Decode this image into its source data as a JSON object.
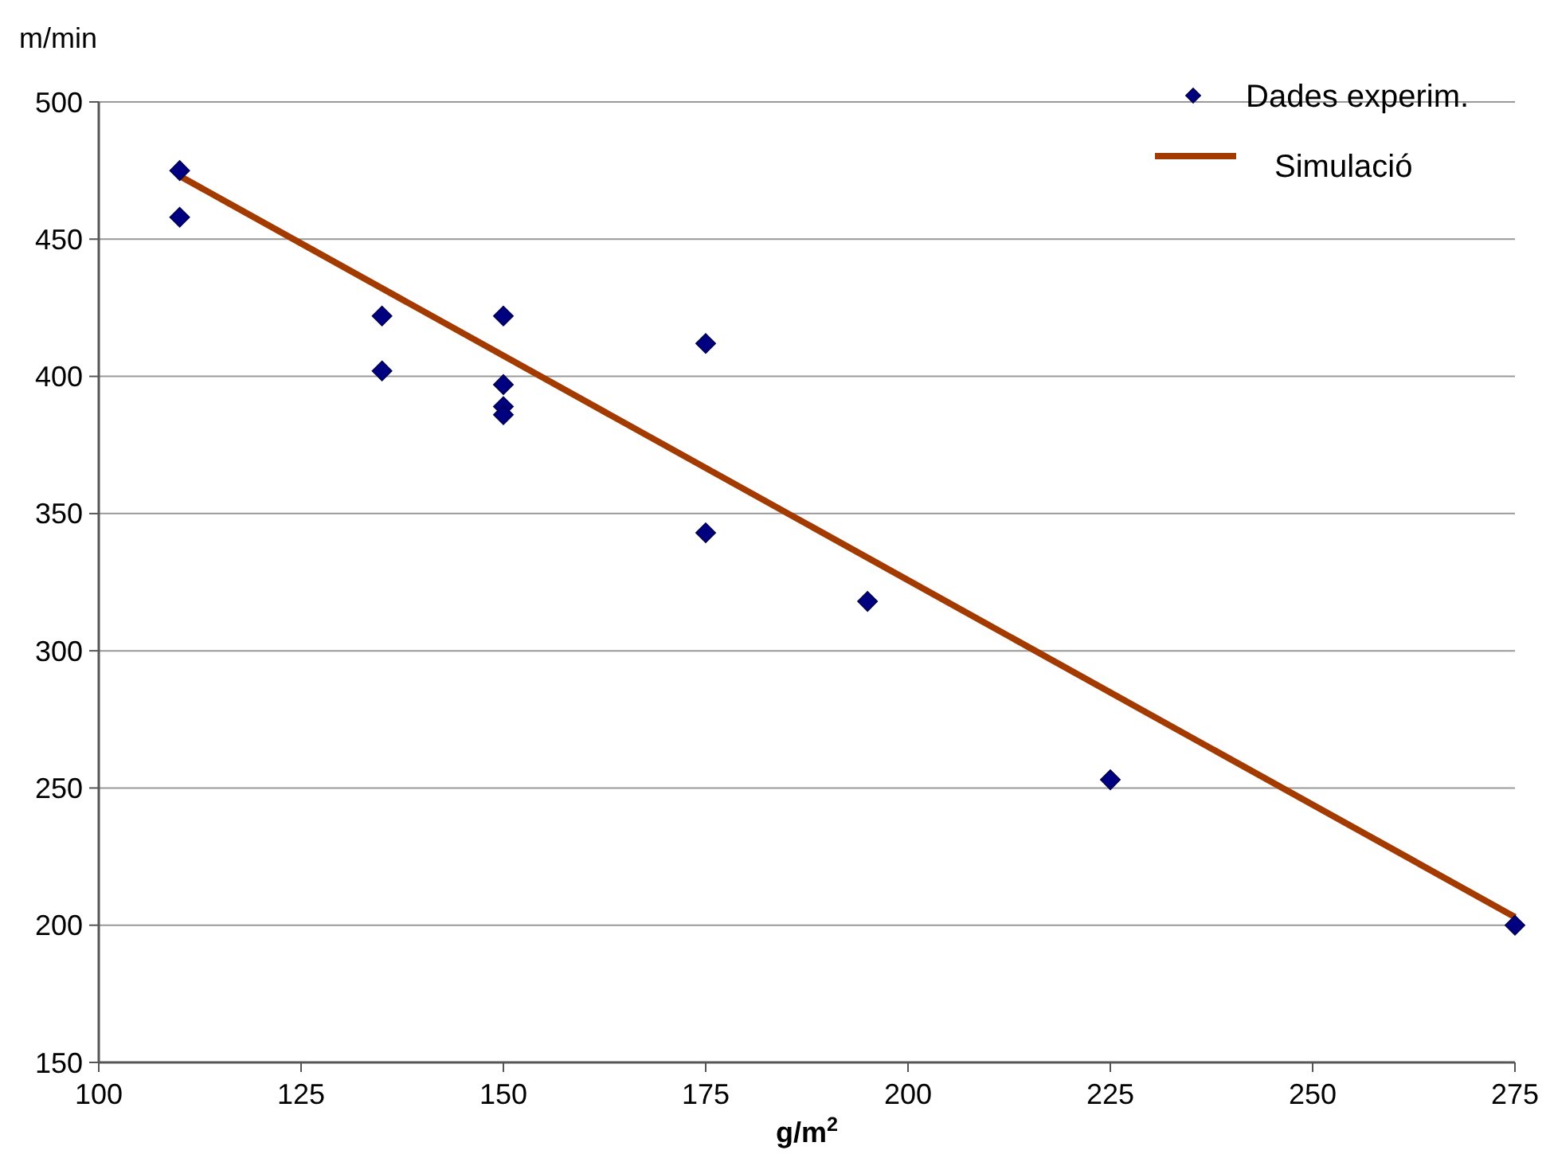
{
  "chart_data": {
    "type": "scatter",
    "xlabel": "g/m$^{2}$",
    "ylabel": "m/min",
    "xlim": [
      100,
      275
    ],
    "xticks": [
      100,
      125,
      150,
      175,
      200,
      225,
      250,
      275
    ],
    "ylim": [
      150,
      500
    ],
    "yticks": [
      150,
      200,
      250,
      300,
      350,
      400,
      450,
      500
    ],
    "grid": "y",
    "legend": "top right",
    "series": [
      {
        "name": "Dades experim.",
        "marker": "diamond",
        "color": "#000080",
        "x": [
          110,
          110,
          135,
          135,
          150,
          150,
          150,
          150,
          175,
          175,
          195,
          225,
          275
        ],
        "values": [
          475,
          458,
          422,
          402,
          422,
          397,
          389,
          386,
          412,
          343,
          318,
          253,
          200
        ]
      },
      {
        "name": "Simulació",
        "type": "line",
        "marker": "none",
        "color": "#a33a00",
        "x": [
          110,
          275
        ],
        "values": [
          473,
          203
        ]
      }
    ]
  }
}
